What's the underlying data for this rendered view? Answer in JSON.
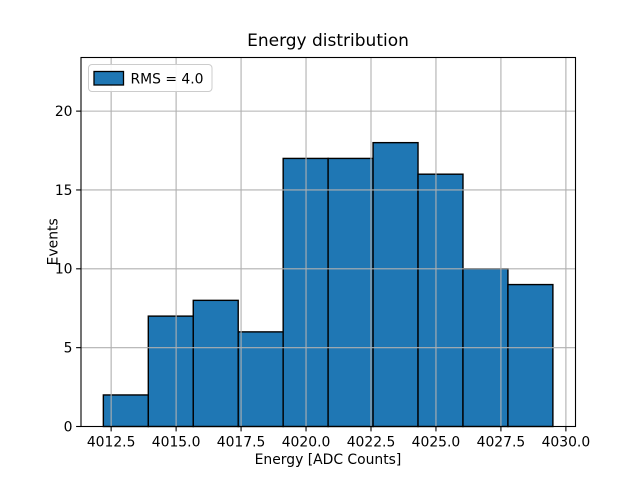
{
  "chart_data": {
    "type": "bar",
    "variant": "histogram",
    "title": "Energy distribution",
    "xlabel": "Energy [ADC Counts]",
    "ylabel": "Events",
    "legend": {
      "position": "upper-left",
      "entries": [
        {
          "label": "RMS = 4.0",
          "color": "#1f77b4",
          "edgecolor": "#000000"
        }
      ]
    },
    "bin_edges": [
      4012.2,
      4013.93,
      4015.66,
      4017.39,
      4019.12,
      4020.85,
      4022.58,
      4024.31,
      4026.04,
      4027.77,
      4029.5
    ],
    "counts": [
      2,
      7,
      8,
      6,
      17,
      17,
      18,
      16,
      10,
      9
    ],
    "total_events": 110,
    "xlim": [
      4011.34,
      4030.37
    ],
    "ylim": [
      0,
      23.4
    ],
    "xticks": [
      "4012.5",
      "4015.0",
      "4017.5",
      "4020.0",
      "4022.5",
      "4025.0",
      "4027.5",
      "4030.0"
    ],
    "yticks": [
      "0",
      "5",
      "10",
      "15",
      "20"
    ],
    "grid": true,
    "grid_over_bars": true,
    "legend_position": "upper left",
    "colors": {
      "bar_fill": "#1f77b4",
      "bar_edge": "#000000",
      "grid": "#b0b0b0",
      "spine": "#000000",
      "text": "#000000",
      "legend_border": "#cccccc",
      "legend_background": "#ffffff",
      "figure_background": "#ffffff"
    }
  }
}
